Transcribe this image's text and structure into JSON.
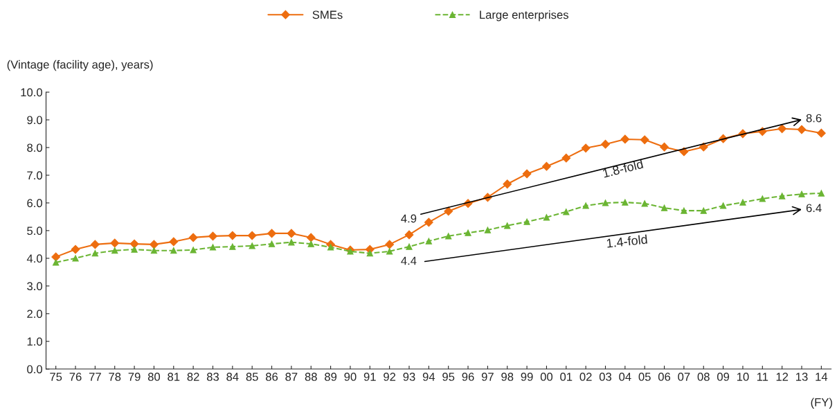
{
  "chart_data": {
    "type": "line",
    "ylabel": "(Vintage (facility age), years)",
    "xlabel": "(FY)",
    "categories": [
      "75",
      "76",
      "77",
      "78",
      "79",
      "80",
      "81",
      "82",
      "83",
      "84",
      "85",
      "86",
      "87",
      "88",
      "89",
      "90",
      "91",
      "92",
      "93",
      "94",
      "95",
      "96",
      "97",
      "98",
      "99",
      "00",
      "01",
      "02",
      "03",
      "04",
      "05",
      "06",
      "07",
      "08",
      "09",
      "10",
      "11",
      "12",
      "13",
      "14"
    ],
    "series": [
      {
        "name": "SMEs",
        "color": "#ed6d0f",
        "marker": "diamond",
        "line_style": "solid",
        "values": [
          4.05,
          4.32,
          4.5,
          4.55,
          4.52,
          4.5,
          4.6,
          4.75,
          4.8,
          4.82,
          4.82,
          4.9,
          4.9,
          4.75,
          4.5,
          4.3,
          4.32,
          4.5,
          4.85,
          5.3,
          5.7,
          5.98,
          6.2,
          6.68,
          7.05,
          7.32,
          7.62,
          7.98,
          8.12,
          8.3,
          8.28,
          8.02,
          7.85,
          8.02,
          8.32,
          8.5,
          8.58,
          8.68,
          8.65,
          8.52
        ]
      },
      {
        "name": "Large enterprises",
        "color": "#6bb533",
        "marker": "triangle",
        "line_style": "dashed",
        "values": [
          3.85,
          4.0,
          4.18,
          4.28,
          4.32,
          4.28,
          4.28,
          4.3,
          4.4,
          4.42,
          4.45,
          4.52,
          4.58,
          4.52,
          4.4,
          4.25,
          4.18,
          4.25,
          4.42,
          4.62,
          4.8,
          4.92,
          5.02,
          5.18,
          5.32,
          5.48,
          5.68,
          5.9,
          6.0,
          6.02,
          5.98,
          5.82,
          5.72,
          5.72,
          5.9,
          6.02,
          6.15,
          6.25,
          6.32,
          6.35
        ]
      }
    ],
    "annotations": [
      "4.9",
      "8.6",
      "4.4",
      "6.4",
      "1.8-fold",
      "1.4-fold"
    ],
    "ylim": [
      0,
      10
    ],
    "yticks": [
      {
        "value": 0,
        "label": "0.0"
      },
      {
        "value": 1,
        "label": "1.0"
      },
      {
        "value": 2,
        "label": "2.0"
      },
      {
        "value": 3,
        "label": "3.0"
      },
      {
        "value": 4,
        "label": "4.0"
      },
      {
        "value": 5,
        "label": "5.0"
      },
      {
        "value": 6,
        "label": "6.0"
      },
      {
        "value": 7,
        "label": "7.0"
      },
      {
        "value": 8,
        "label": "8.0"
      },
      {
        "value": 9,
        "label": "9.0"
      },
      {
        "value": 10,
        "label": "10.0"
      }
    ],
    "grid": false,
    "legend": "top"
  }
}
